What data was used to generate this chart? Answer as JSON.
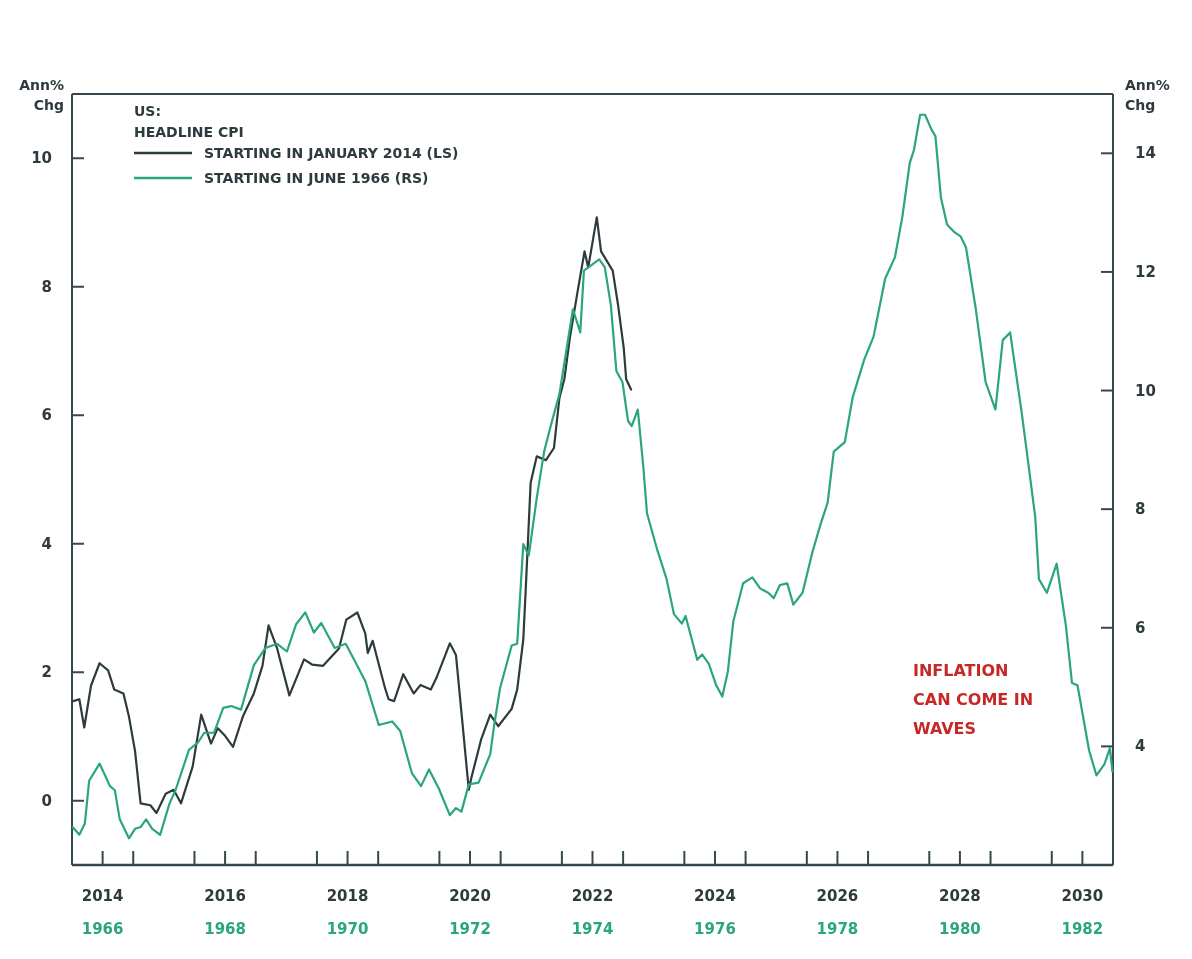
{
  "chart_data": {
    "type": "line",
    "ylabel": "Ann%\nChg",
    "y2label": "Ann%\nChg",
    "legend_title": "US:\nHEADLINE CPI",
    "legend": "top left",
    "grid": false,
    "annotations": [
      "INFLATION\nCAN COME IN\nWAVES"
    ],
    "xlim": [
      2014,
      2031
    ],
    "xticks": [
      {
        "value": 2014,
        "label": null
      },
      {
        "value": 2014.5,
        "label": "2014"
      },
      {
        "value": 2015,
        "label": null
      },
      {
        "value": 2016,
        "label": null
      },
      {
        "value": 2016.5,
        "label": "2016"
      },
      {
        "value": 2017,
        "label": null
      },
      {
        "value": 2018,
        "label": null
      },
      {
        "value": 2018.5,
        "label": "2018"
      },
      {
        "value": 2019,
        "label": null
      },
      {
        "value": 2020,
        "label": null
      },
      {
        "value": 2020.5,
        "label": "2020"
      },
      {
        "value": 2021,
        "label": null
      },
      {
        "value": 2022,
        "label": null
      },
      {
        "value": 2022.5,
        "label": "2022"
      },
      {
        "value": 2023,
        "label": null
      },
      {
        "value": 2024,
        "label": null
      },
      {
        "value": 2024.5,
        "label": "2024"
      },
      {
        "value": 2025,
        "label": null
      },
      {
        "value": 2026,
        "label": null
      },
      {
        "value": 2026.5,
        "label": "2026"
      },
      {
        "value": 2027,
        "label": null
      },
      {
        "value": 2028,
        "label": null
      },
      {
        "value": 2028.5,
        "label": "2028"
      },
      {
        "value": 2029,
        "label": null
      },
      {
        "value": 2030,
        "label": null
      },
      {
        "value": 2030.5,
        "label": "2030"
      }
    ],
    "x2lim": [
      1965.5,
      1982.5
    ],
    "x2ticks": [
      1966,
      1968,
      1970,
      1972,
      1974,
      1976,
      1978,
      1980,
      1982
    ],
    "ylim": [
      -1,
      11
    ],
    "yticks": [
      0,
      2,
      4,
      6,
      8,
      10
    ],
    "y2lim": [
      2,
      15
    ],
    "y2ticks": [
      4,
      6,
      8,
      10,
      12,
      14
    ],
    "series": [
      {
        "name": "STARTING IN JANUARY 2014 (LS)",
        "color": "#2e3b3e",
        "x": [
          2014.02,
          2014.12,
          2014.2,
          2014.31,
          2014.45,
          2014.59,
          2014.69,
          2014.84,
          2014.93,
          2015.03,
          2015.12,
          2015.28,
          2015.38,
          2015.53,
          2015.66,
          2015.78,
          2015.97,
          2016.11,
          2016.27,
          2016.38,
          2016.5,
          2016.63,
          2016.79,
          2016.97,
          2017.11,
          2017.21,
          2017.35,
          2017.55,
          2017.79,
          2017.92,
          2018.1,
          2018.36,
          2018.48,
          2018.66,
          2018.79,
          2018.83,
          2018.91,
          2019.11,
          2019.17,
          2019.26,
          2019.41,
          2019.58,
          2019.69,
          2019.86,
          2019.95,
          2020.17,
          2020.27,
          2020.36,
          2020.48,
          2020.52,
          2020.68,
          2020.83,
          2020.96,
          2021.18,
          2021.27,
          2021.37,
          2021.41,
          2021.49,
          2021.59,
          2021.74,
          2021.87,
          2021.96,
          2022.04,
          2022.13,
          2022.25,
          2022.37,
          2022.43,
          2022.57,
          2022.64,
          2022.83,
          2022.92,
          2023.01,
          2023.05,
          2023.13
        ],
        "values": [
          1.55,
          1.58,
          1.14,
          1.79,
          2.14,
          2.03,
          1.73,
          1.67,
          1.31,
          0.77,
          -0.04,
          -0.07,
          -0.19,
          0.11,
          0.17,
          -0.04,
          0.53,
          1.34,
          0.89,
          1.13,
          1.01,
          0.84,
          1.31,
          1.67,
          2.1,
          2.73,
          2.37,
          1.64,
          2.2,
          2.12,
          2.1,
          2.37,
          2.82,
          2.93,
          2.6,
          2.3,
          2.49,
          1.76,
          1.58,
          1.55,
          1.97,
          1.67,
          1.8,
          1.73,
          1.91,
          2.45,
          2.27,
          1.37,
          0.17,
          0.35,
          0.95,
          1.34,
          1.16,
          1.43,
          1.73,
          2.51,
          3.3,
          4.95,
          5.36,
          5.3,
          5.49,
          6.27,
          6.56,
          7.2,
          7.89,
          8.55,
          8.3,
          9.08,
          8.55,
          8.25,
          7.7,
          7.05,
          6.56,
          6.4
        ]
      },
      {
        "name": "STARTING IN JUNE 1966 (RS)",
        "color": "#2aa57f",
        "axis": "y2",
        "x": [
          2014.01,
          2014.12,
          2014.21,
          2014.28,
          2014.45,
          2014.62,
          2014.7,
          2014.78,
          2014.93,
          2015.03,
          2015.12,
          2015.21,
          2015.31,
          2015.44,
          2015.59,
          2015.69,
          2015.91,
          2016.06,
          2016.16,
          2016.32,
          2016.47,
          2016.6,
          2016.76,
          2016.97,
          2017.16,
          2017.35,
          2017.51,
          2017.66,
          2017.81,
          2017.95,
          2018.07,
          2018.29,
          2018.47,
          2018.67,
          2018.79,
          2019.01,
          2019.23,
          2019.36,
          2019.55,
          2019.7,
          2019.83,
          2019.99,
          2020.17,
          2020.27,
          2020.36,
          2020.48,
          2020.64,
          2020.83,
          2020.89,
          2020.99,
          2021.18,
          2021.27,
          2021.37,
          2021.46,
          2021.59,
          2021.71,
          2021.84,
          2021.96,
          2022.18,
          2022.3,
          2022.36,
          2022.61,
          2022.7,
          2022.8,
          2022.89,
          2022.99,
          2023.08,
          2023.14,
          2023.24,
          2023.33,
          2023.39,
          2023.55,
          2023.71,
          2023.83,
          2023.96,
          2024.02,
          2024.21,
          2024.29,
          2024.4,
          2024.52,
          2024.62,
          2024.71,
          2024.8,
          2024.96,
          2025.11,
          2025.24,
          2025.37,
          2025.46,
          2025.56,
          2025.68,
          2025.78,
          2025.93,
          2026.09,
          2026.22,
          2026.34,
          2026.44,
          2026.62,
          2026.75,
          2026.94,
          2027.09,
          2027.28,
          2027.44,
          2027.56,
          2027.68,
          2027.75,
          2027.85,
          2027.93,
          2028.04,
          2028.1,
          2028.19,
          2028.29,
          2028.41,
          2028.51,
          2028.6,
          2028.76,
          2028.92,
          2029.08,
          2029.2,
          2029.32,
          2029.51,
          2029.73,
          2029.79,
          2029.92,
          2030.08,
          2030.23,
          2030.33,
          2030.42,
          2030.61,
          2030.73,
          2030.86,
          2030.95,
          2030.99
        ],
        "values": [
          2.64,
          2.51,
          2.7,
          3.42,
          3.71,
          3.33,
          3.26,
          2.77,
          2.45,
          2.61,
          2.64,
          2.77,
          2.61,
          2.51,
          3.03,
          3.26,
          3.94,
          4.07,
          4.23,
          4.23,
          4.65,
          4.68,
          4.62,
          5.37,
          5.66,
          5.73,
          5.6,
          6.06,
          6.26,
          5.92,
          6.08,
          5.66,
          5.73,
          5.34,
          5.1,
          4.36,
          4.42,
          4.26,
          3.55,
          3.33,
          3.61,
          3.29,
          2.84,
          2.96,
          2.9,
          3.36,
          3.39,
          3.87,
          4.33,
          4.98,
          5.7,
          5.73,
          7.41,
          7.22,
          8.19,
          8.97,
          9.49,
          9.94,
          11.37,
          10.98,
          12.02,
          12.21,
          12.08,
          11.44,
          10.33,
          10.14,
          9.49,
          9.4,
          9.68,
          8.71,
          7.93,
          7.34,
          6.82,
          6.23,
          6.07,
          6.2,
          5.46,
          5.55,
          5.39,
          5.03,
          4.84,
          5.26,
          6.11,
          6.75,
          6.85,
          6.66,
          6.59,
          6.5,
          6.72,
          6.75,
          6.39,
          6.59,
          7.27,
          7.73,
          8.11,
          8.97,
          9.13,
          9.89,
          10.53,
          10.91,
          11.89,
          12.25,
          12.93,
          13.83,
          14.06,
          14.65,
          14.65,
          14.39,
          14.29,
          13.25,
          12.8,
          12.67,
          12.6,
          12.41,
          11.37,
          10.14,
          9.68,
          10.85,
          10.98,
          9.62,
          7.87,
          6.82,
          6.59,
          7.08,
          6.04,
          5.07,
          5.03,
          3.93,
          3.51,
          3.7,
          3.97,
          3.58
        ]
      }
    ]
  }
}
